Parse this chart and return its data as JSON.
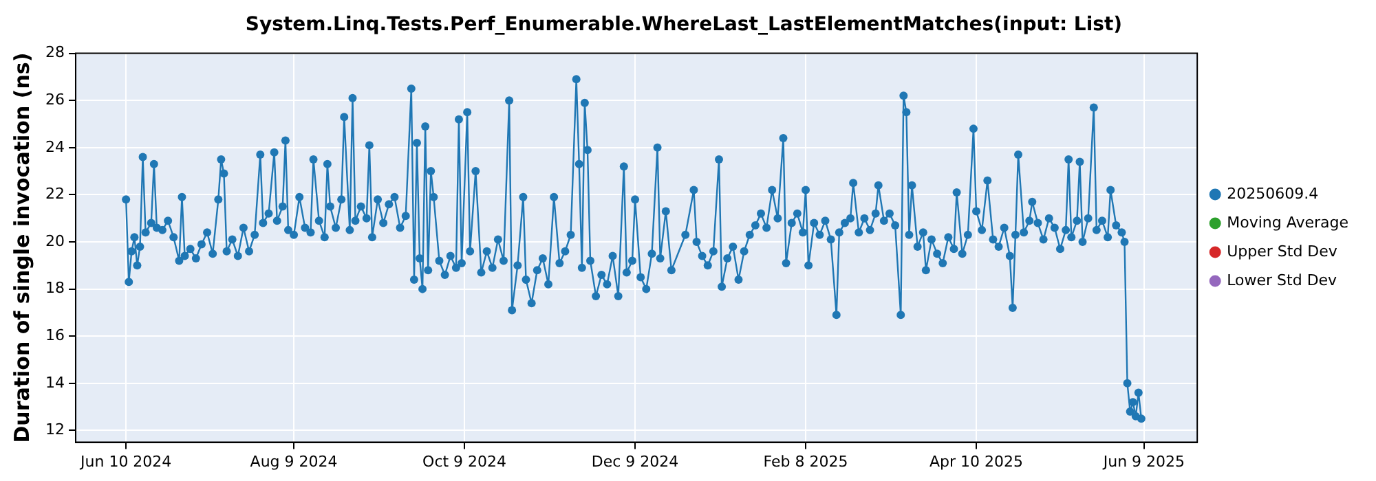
{
  "chart_data": {
    "type": "line",
    "title": "System.Linq.Tests.Perf_Enumerable.WhereLast_LastElementMatches(input: List)",
    "ylabel": "Duration of single invocation (ns)",
    "xlim": [
      "2024-05-23",
      "2025-06-28"
    ],
    "xticks": [
      {
        "value": "2024-06-10",
        "label": "Jun 10 2024"
      },
      {
        "value": "2024-08-09",
        "label": "Aug 9 2024"
      },
      {
        "value": "2024-10-09",
        "label": "Oct 9 2024"
      },
      {
        "value": "2024-12-09",
        "label": "Dec 9 2024"
      },
      {
        "value": "2025-02-08",
        "label": "Feb 8 2025"
      },
      {
        "value": "2025-04-10",
        "label": "Apr 10 2025"
      },
      {
        "value": "2025-06-09",
        "label": "Jun 9 2025"
      }
    ],
    "ylim": [
      11.5,
      28
    ],
    "yticks": [
      12,
      14,
      16,
      18,
      20,
      22,
      24,
      26,
      28
    ],
    "grid": true,
    "legend": "right",
    "marker": "circle",
    "series": [
      {
        "name": "20250609.4",
        "color": "#1f77b4",
        "x": [
          "2024-06-10",
          "2024-06-11",
          "2024-06-12",
          "2024-06-13",
          "2024-06-14",
          "2024-06-15",
          "2024-06-16",
          "2024-06-17",
          "2024-06-19",
          "2024-06-20",
          "2024-06-21",
          "2024-06-23",
          "2024-06-25",
          "2024-06-27",
          "2024-06-29",
          "2024-06-30",
          "2024-07-01",
          "2024-07-03",
          "2024-07-05",
          "2024-07-07",
          "2024-07-09",
          "2024-07-11",
          "2024-07-13",
          "2024-07-14",
          "2024-07-15",
          "2024-07-16",
          "2024-07-18",
          "2024-07-20",
          "2024-07-22",
          "2024-07-24",
          "2024-07-26",
          "2024-07-28",
          "2024-07-29",
          "2024-07-31",
          "2024-08-02",
          "2024-08-03",
          "2024-08-05",
          "2024-08-06",
          "2024-08-07",
          "2024-08-09",
          "2024-08-11",
          "2024-08-13",
          "2024-08-15",
          "2024-08-16",
          "2024-08-18",
          "2024-08-20",
          "2024-08-21",
          "2024-08-22",
          "2024-08-24",
          "2024-08-26",
          "2024-08-27",
          "2024-08-29",
          "2024-08-30",
          "2024-08-31",
          "2024-09-02",
          "2024-09-04",
          "2024-09-05",
          "2024-09-06",
          "2024-09-08",
          "2024-09-10",
          "2024-09-12",
          "2024-09-14",
          "2024-09-16",
          "2024-09-18",
          "2024-09-20",
          "2024-09-21",
          "2024-09-22",
          "2024-09-23",
          "2024-09-24",
          "2024-09-25",
          "2024-09-26",
          "2024-09-27",
          "2024-09-28",
          "2024-09-30",
          "2024-10-02",
          "2024-10-04",
          "2024-10-06",
          "2024-10-07",
          "2024-10-08",
          "2024-10-10",
          "2024-10-11",
          "2024-10-13",
          "2024-10-15",
          "2024-10-17",
          "2024-10-19",
          "2024-10-21",
          "2024-10-23",
          "2024-10-25",
          "2024-10-26",
          "2024-10-28",
          "2024-10-30",
          "2024-10-31",
          "2024-11-02",
          "2024-11-04",
          "2024-11-06",
          "2024-11-08",
          "2024-11-10",
          "2024-11-12",
          "2024-11-14",
          "2024-11-16",
          "2024-11-18",
          "2024-11-19",
          "2024-11-20",
          "2024-11-21",
          "2024-11-22",
          "2024-11-23",
          "2024-11-25",
          "2024-11-27",
          "2024-11-29",
          "2024-12-01",
          "2024-12-03",
          "2024-12-05",
          "2024-12-06",
          "2024-12-08",
          "2024-12-09",
          "2024-12-11",
          "2024-12-13",
          "2024-12-15",
          "2024-12-17",
          "2024-12-18",
          "2024-12-20",
          "2024-12-22",
          "2024-12-27",
          "2024-12-30",
          "2024-12-31",
          "2025-01-02",
          "2025-01-04",
          "2025-01-06",
          "2025-01-08",
          "2025-01-09",
          "2025-01-11",
          "2025-01-13",
          "2025-01-15",
          "2025-01-17",
          "2025-01-19",
          "2025-01-21",
          "2025-01-23",
          "2025-01-25",
          "2025-01-27",
          "2025-01-29",
          "2025-01-31",
          "2025-02-01",
          "2025-02-03",
          "2025-02-05",
          "2025-02-07",
          "2025-02-08",
          "2025-02-09",
          "2025-02-11",
          "2025-02-13",
          "2025-02-15",
          "2025-02-17",
          "2025-02-19",
          "2025-02-20",
          "2025-02-22",
          "2025-02-24",
          "2025-02-25",
          "2025-02-27",
          "2025-03-01",
          "2025-03-03",
          "2025-03-05",
          "2025-03-06",
          "2025-03-08",
          "2025-03-10",
          "2025-03-12",
          "2025-03-14",
          "2025-03-15",
          "2025-03-16",
          "2025-03-17",
          "2025-03-18",
          "2025-03-20",
          "2025-03-22",
          "2025-03-23",
          "2025-03-25",
          "2025-03-27",
          "2025-03-29",
          "2025-03-31",
          "2025-04-02",
          "2025-04-03",
          "2025-04-05",
          "2025-04-07",
          "2025-04-09",
          "2025-04-10",
          "2025-04-12",
          "2025-04-14",
          "2025-04-16",
          "2025-04-18",
          "2025-04-20",
          "2025-04-22",
          "2025-04-23",
          "2025-04-24",
          "2025-04-25",
          "2025-04-27",
          "2025-04-29",
          "2025-04-30",
          "2025-05-02",
          "2025-05-04",
          "2025-05-06",
          "2025-05-08",
          "2025-05-10",
          "2025-05-12",
          "2025-05-13",
          "2025-05-14",
          "2025-05-16",
          "2025-05-17",
          "2025-05-18",
          "2025-05-20",
          "2025-05-22",
          "2025-05-23",
          "2025-05-25",
          "2025-05-27",
          "2025-05-28",
          "2025-05-30",
          "2025-06-01",
          "2025-06-02",
          "2025-06-03",
          "2025-06-04",
          "2025-06-05",
          "2025-06-06",
          "2025-06-07",
          "2025-06-08"
        ],
        "values": [
          21.8,
          18.3,
          19.6,
          20.2,
          19.0,
          19.8,
          23.6,
          20.4,
          20.8,
          23.3,
          20.6,
          20.5,
          20.9,
          20.2,
          19.2,
          21.9,
          19.4,
          19.7,
          19.3,
          19.9,
          20.4,
          19.5,
          21.8,
          23.5,
          22.9,
          19.6,
          20.1,
          19.4,
          20.6,
          19.6,
          20.3,
          23.7,
          20.8,
          21.2,
          23.8,
          20.9,
          21.5,
          24.3,
          20.5,
          20.3,
          21.9,
          20.6,
          20.4,
          23.5,
          20.9,
          20.2,
          23.3,
          21.5,
          20.6,
          21.8,
          25.3,
          20.5,
          26.1,
          20.9,
          21.5,
          21.0,
          24.1,
          20.2,
          21.8,
          20.8,
          21.6,
          21.9,
          20.6,
          21.1,
          26.5,
          18.4,
          24.2,
          19.3,
          18.0,
          24.9,
          18.8,
          23.0,
          21.9,
          19.2,
          18.6,
          19.4,
          18.9,
          25.2,
          19.1,
          25.5,
          19.6,
          23.0,
          18.7,
          19.6,
          18.9,
          20.1,
          19.2,
          26.0,
          17.1,
          19.0,
          21.9,
          18.4,
          17.4,
          18.8,
          19.3,
          18.2,
          21.9,
          19.1,
          19.6,
          20.3,
          26.9,
          23.3,
          18.9,
          25.9,
          23.9,
          19.2,
          17.7,
          18.6,
          18.2,
          19.4,
          17.7,
          23.2,
          18.7,
          19.2,
          21.8,
          18.5,
          18.0,
          19.5,
          24.0,
          19.3,
          21.3,
          18.8,
          20.3,
          22.2,
          20.0,
          19.4,
          19.0,
          19.6,
          23.5,
          18.1,
          19.3,
          19.8,
          18.4,
          19.6,
          20.3,
          20.7,
          21.2,
          20.6,
          22.2,
          21.0,
          24.4,
          19.1,
          20.8,
          21.2,
          20.4,
          22.2,
          19.0,
          20.8,
          20.3,
          20.9,
          20.1,
          16.9,
          20.4,
          20.8,
          21.0,
          22.5,
          20.4,
          21.0,
          20.5,
          21.2,
          22.4,
          20.9,
          21.2,
          20.7,
          16.9,
          26.2,
          25.5,
          20.3,
          22.4,
          19.8,
          20.4,
          18.8,
          20.1,
          19.5,
          19.1,
          20.2,
          19.7,
          22.1,
          19.5,
          20.3,
          24.8,
          21.3,
          20.5,
          22.6,
          20.1,
          19.8,
          20.6,
          19.4,
          17.2,
          20.3,
          23.7,
          20.4,
          20.9,
          21.7,
          20.8,
          20.1,
          21.0,
          20.6,
          19.7,
          20.5,
          23.5,
          20.2,
          20.9,
          23.4,
          20.0,
          21.0,
          25.7,
          20.5,
          20.9,
          20.2,
          22.2,
          20.7,
          20.4,
          20.0,
          14.0,
          12.8,
          13.2,
          12.6,
          13.6,
          12.5
        ]
      },
      {
        "name": "Moving Average",
        "color": "#2ca02c"
      },
      {
        "name": "Upper Std Dev",
        "color": "#d62728"
      },
      {
        "name": "Lower Std Dev",
        "color": "#9467bd"
      }
    ]
  }
}
